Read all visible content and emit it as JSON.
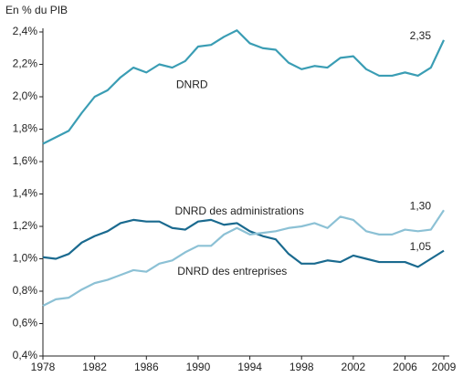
{
  "chart_data": {
    "type": "line",
    "y_label": "En % du PIB",
    "x": [
      1978,
      1979,
      1980,
      1981,
      1982,
      1983,
      1984,
      1985,
      1986,
      1987,
      1988,
      1989,
      1990,
      1991,
      1992,
      1993,
      1994,
      1995,
      1996,
      1997,
      1998,
      1999,
      2000,
      2001,
      2002,
      2003,
      2004,
      2005,
      2006,
      2007,
      2008,
      2009
    ],
    "series": [
      {
        "name": "DNRD",
        "color": "#3a9db4",
        "values": [
          1.71,
          1.75,
          1.79,
          1.9,
          2.0,
          2.04,
          2.12,
          2.18,
          2.15,
          2.2,
          2.18,
          2.22,
          2.31,
          2.32,
          2.37,
          2.41,
          2.33,
          2.3,
          2.29,
          2.21,
          2.17,
          2.19,
          2.18,
          2.24,
          2.25,
          2.17,
          2.13,
          2.13,
          2.15,
          2.13,
          2.18,
          2.35
        ],
        "value_labels": [
          null,
          null,
          null,
          null,
          null,
          null,
          null,
          null,
          null,
          null,
          null,
          null,
          null,
          null,
          null,
          null,
          null,
          null,
          null,
          null,
          null,
          null,
          null,
          null,
          null,
          null,
          null,
          null,
          null,
          null,
          null,
          "2,35"
        ]
      },
      {
        "name": "DNRD des administrations",
        "color": "#1a6a8f",
        "values": [
          1.01,
          1.0,
          1.03,
          1.1,
          1.14,
          1.17,
          1.22,
          1.24,
          1.23,
          1.23,
          1.19,
          1.18,
          1.23,
          1.24,
          1.21,
          1.22,
          1.17,
          1.14,
          1.12,
          1.03,
          0.97,
          0.97,
          0.99,
          0.98,
          1.02,
          1.0,
          0.98,
          0.98,
          0.98,
          0.95,
          1.0,
          1.05
        ],
        "value_labels": [
          null,
          null,
          null,
          null,
          null,
          null,
          null,
          null,
          null,
          null,
          null,
          null,
          null,
          null,
          null,
          null,
          null,
          null,
          null,
          null,
          null,
          null,
          null,
          null,
          null,
          null,
          null,
          null,
          null,
          null,
          null,
          "1,05"
        ]
      },
      {
        "name": "DNRD des entreprises",
        "color": "#8cc1d5",
        "values": [
          0.71,
          0.75,
          0.76,
          0.81,
          0.85,
          0.87,
          0.9,
          0.93,
          0.92,
          0.97,
          0.99,
          1.04,
          1.08,
          1.08,
          1.15,
          1.19,
          1.15,
          1.16,
          1.17,
          1.19,
          1.2,
          1.22,
          1.19,
          1.26,
          1.24,
          1.17,
          1.15,
          1.15,
          1.18,
          1.17,
          1.18,
          1.3
        ],
        "value_labels": [
          null,
          null,
          null,
          null,
          null,
          null,
          null,
          null,
          null,
          null,
          null,
          null,
          null,
          null,
          null,
          null,
          null,
          null,
          null,
          null,
          null,
          null,
          null,
          null,
          null,
          null,
          null,
          null,
          null,
          null,
          null,
          "1,30"
        ]
      }
    ],
    "xlim": [
      1978,
      2009
    ],
    "xticks": [
      1978,
      1982,
      1986,
      1990,
      1994,
      1998,
      2002,
      2006,
      2009
    ],
    "ylim": [
      0.4,
      2.4
    ],
    "yticks": [
      {
        "value": 0.4,
        "label": "0,4%"
      },
      {
        "value": 0.6,
        "label": "0,6%"
      },
      {
        "value": 0.8,
        "label": "0,8%"
      },
      {
        "value": 1.0,
        "label": "1,0%"
      },
      {
        "value": 1.2,
        "label": "1,2%"
      },
      {
        "value": 1.4,
        "label": "1,4%"
      },
      {
        "value": 1.6,
        "label": "1,6%"
      },
      {
        "value": 1.8,
        "label": "1,8%"
      },
      {
        "value": 2.0,
        "label": "2,0%"
      },
      {
        "value": 2.2,
        "label": "2,2%"
      },
      {
        "value": 2.4,
        "label": "2,4%"
      }
    ],
    "grid": false
  }
}
